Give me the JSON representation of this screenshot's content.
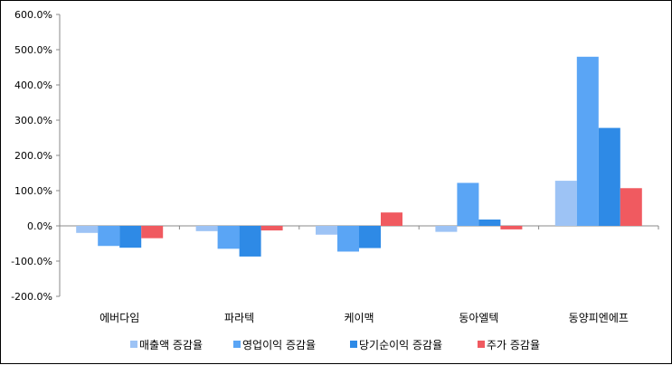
{
  "chart_data": {
    "type": "bar",
    "categories": [
      "에버다임",
      "파라텍",
      "케이맥",
      "동아엘텍",
      "동양피엔에프"
    ],
    "series": [
      {
        "name": "매출액 증감율",
        "color": "#9dc3f5",
        "values": [
          -20,
          -15,
          -25,
          -17,
          128
        ]
      },
      {
        "name": "영업이익 증감율",
        "color": "#5aa5f5",
        "values": [
          -57,
          -65,
          -73,
          122,
          480
        ]
      },
      {
        "name": "당기순이익 증감율",
        "color": "#2e8ae6",
        "values": [
          -62,
          -87,
          -63,
          18,
          278
        ]
      },
      {
        "name": "주가 증감율",
        "color": "#f05a60",
        "values": [
          -35,
          -13,
          38,
          -10,
          107
        ]
      }
    ],
    "yticks": [
      "600.0%",
      "500.0%",
      "400.0%",
      "300.0%",
      "200.0%",
      "100.0%",
      "0.0%",
      "-100.0%",
      "-200.0%"
    ],
    "ylim": [
      -200,
      600
    ],
    "grid": false,
    "legend": "bottom"
  }
}
